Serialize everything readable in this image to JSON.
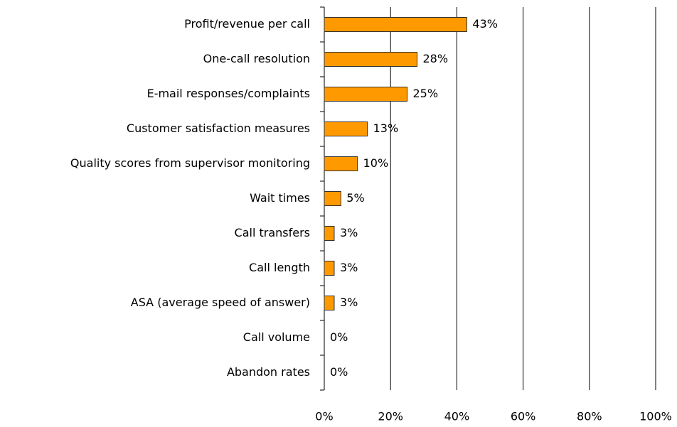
{
  "chart_data": {
    "type": "bar",
    "orientation": "horizontal",
    "categories": [
      "Profit/revenue per call",
      "One-call resolution",
      "E-mail responses/complaints",
      "Customer satisfaction measures",
      "Quality scores from supervisor monitoring",
      "Wait times",
      "Call transfers",
      "Call length",
      "ASA (average speed of answer)",
      "Call volume",
      "Abandon rates"
    ],
    "values": [
      43,
      28,
      25,
      13,
      10,
      5,
      3,
      3,
      3,
      0,
      0
    ],
    "value_labels": [
      "43%",
      "28%",
      "25%",
      "13%",
      "10%",
      "5%",
      "3%",
      "3%",
      "3%",
      "0%",
      "0%"
    ],
    "color": "#ff9900",
    "xlim": [
      0,
      100
    ],
    "xticks": [
      {
        "value": 0,
        "label": "0%"
      },
      {
        "value": 20,
        "label": "20%"
      },
      {
        "value": 40,
        "label": "40%"
      },
      {
        "value": 60,
        "label": "60%"
      },
      {
        "value": 80,
        "label": "80%"
      },
      {
        "value": 100,
        "label": "100%"
      }
    ],
    "grid": true
  }
}
